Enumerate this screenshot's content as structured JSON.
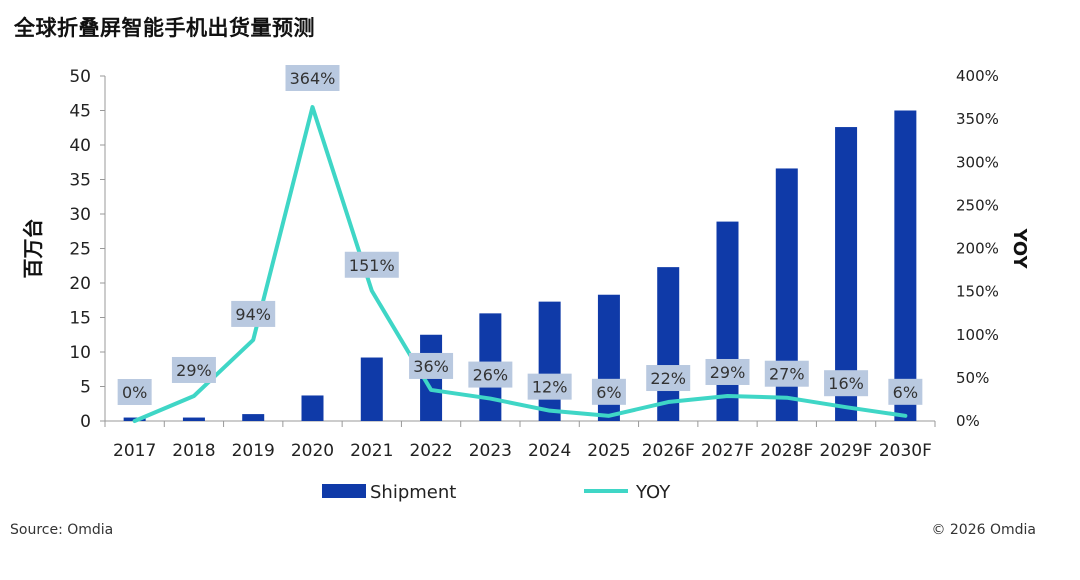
{
  "title": "全球折叠屏智能手机出货量预测",
  "source": "Source: Omdia",
  "copyright": "© 2026 Omdia",
  "colors": {
    "bar": "#0f3aa8",
    "line": "#3fd6c6",
    "label_box": "#b9c9e0",
    "axis": "#999999"
  },
  "chart_data": {
    "type": "bar",
    "categories": [
      "2017",
      "2018",
      "2019",
      "2020",
      "2021",
      "2022",
      "2023",
      "2024",
      "2025",
      "2026F",
      "2027F",
      "2028F",
      "2029F",
      "2030F"
    ],
    "series": [
      {
        "name": "Shipment",
        "type": "bar",
        "axis": "left",
        "values": [
          0.5,
          0.5,
          1.0,
          3.7,
          9.2,
          12.5,
          15.6,
          17.3,
          18.3,
          22.3,
          28.9,
          36.6,
          42.6,
          45.0
        ]
      },
      {
        "name": "YOY",
        "type": "line",
        "axis": "right",
        "values": [
          0,
          29,
          94,
          364,
          151,
          36,
          26,
          12,
          6,
          22,
          29,
          27,
          16,
          6
        ],
        "labels": [
          "0%",
          "29%",
          "94%",
          "364%",
          "151%",
          "36%",
          "26%",
          "12%",
          "6%",
          "22%",
          "29%",
          "27%",
          "16%",
          "6%"
        ]
      }
    ],
    "ylabel": "百万台",
    "ylabel_right": "YOY",
    "ylim": [
      0,
      50
    ],
    "yticks": [
      "0",
      "5",
      "10",
      "15",
      "20",
      "25",
      "30",
      "35",
      "40",
      "45",
      "50"
    ],
    "ylim_right": [
      0,
      400
    ],
    "yticks_right": [
      "0%",
      "50%",
      "100%",
      "150%",
      "200%",
      "250%",
      "300%",
      "350%",
      "400%"
    ],
    "grid": false,
    "legend_position": "bottom"
  }
}
